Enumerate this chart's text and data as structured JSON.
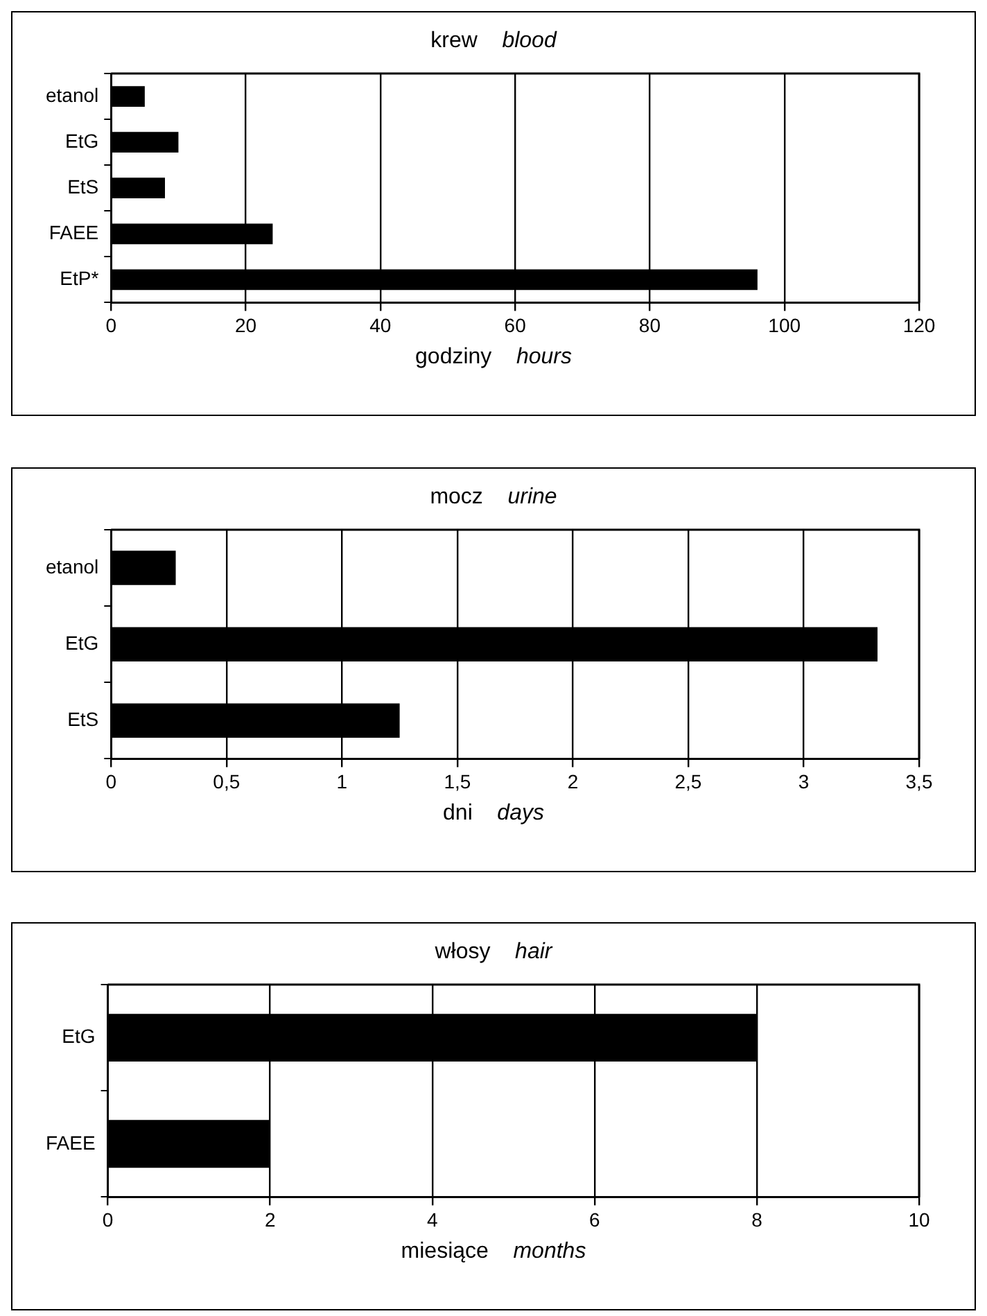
{
  "chart_data": [
    {
      "type": "bar",
      "orientation": "horizontal",
      "title": "krew    blood",
      "xlabel": "godziny    hours",
      "categories": [
        "etanol",
        "EtG",
        "EtS",
        "FAEE",
        "EtP*"
      ],
      "values": [
        5,
        10,
        8,
        24,
        96
      ],
      "color": "#000000",
      "xlim": [
        0,
        120
      ],
      "xticks": [
        0,
        20,
        40,
        60,
        80,
        100,
        120
      ],
      "grid": "x",
      "legend": false
    },
    {
      "type": "bar",
      "orientation": "horizontal",
      "title": "mocz    urine",
      "xlabel": "dni    days",
      "categories": [
        "etanol",
        "EtG",
        "EtS"
      ],
      "values": [
        0.28,
        3.32,
        1.25
      ],
      "color": "#000000",
      "xlim": [
        0,
        3.5
      ],
      "xticks": [
        0,
        {
          "value": 0.5,
          "label": "0,5"
        },
        1,
        {
          "value": 1.5,
          "label": "1,5"
        },
        2,
        {
          "value": 2.5,
          "label": "2,5"
        },
        3,
        {
          "value": 3.5,
          "label": "3,5"
        }
      ],
      "grid": "x",
      "legend": false
    },
    {
      "type": "bar",
      "orientation": "horizontal",
      "title": "włosy    hair",
      "xlabel": "miesiące    months",
      "categories": [
        "EtG",
        "FAEE"
      ],
      "values": [
        8,
        2
      ],
      "color": "#000000",
      "xlim": [
        0,
        10
      ],
      "xticks": [
        0,
        2,
        4,
        6,
        8,
        10
      ],
      "grid": "x",
      "legend": false
    }
  ]
}
